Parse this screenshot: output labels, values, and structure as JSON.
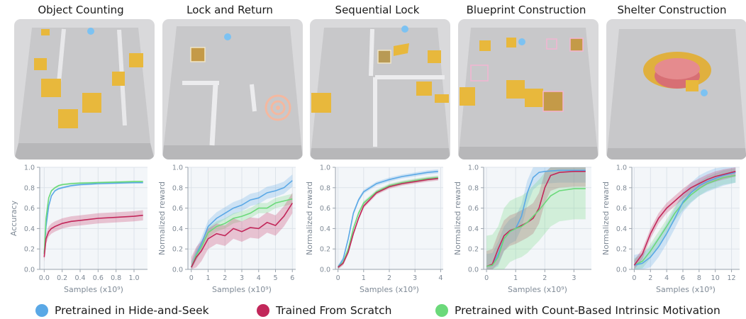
{
  "colors": {
    "blue": "#5aa8e6",
    "red": "#c2275a",
    "green": "#6bd97a"
  },
  "legend": [
    {
      "label": "Pretrained in Hide-and-Seek",
      "color": "#5aa8e6"
    },
    {
      "label": "Trained From Scratch",
      "color": "#c2275a"
    },
    {
      "label": "Pretrained with Count-Based Intrinsic Motivation",
      "color": "#6bd97a"
    }
  ],
  "panels": [
    {
      "title": "Object Counting"
    },
    {
      "title": "Lock and Return"
    },
    {
      "title": "Sequential Lock"
    },
    {
      "title": "Blueprint Construction"
    },
    {
      "title": "Shelter Construction"
    }
  ],
  "chart_data": [
    {
      "type": "line",
      "title": "Object Counting",
      "xlabel": "Samples (x10⁹)",
      "ylabel": "Accuracy",
      "xlim": [
        -0.05,
        1.15
      ],
      "ylim": [
        0.0,
        1.0
      ],
      "xticks": [
        "0.0",
        "0.2",
        "0.4",
        "0.6",
        "0.8",
        "1.0"
      ],
      "xtickvals": [
        0,
        0.2,
        0.4,
        0.6,
        0.8,
        1.0
      ],
      "yticks": [
        "0.0",
        "0.2",
        "0.4",
        "0.6",
        "0.8",
        "1.0"
      ],
      "ytickvals": [
        0,
        0.2,
        0.4,
        0.6,
        0.8,
        1.0
      ],
      "grid": true,
      "series": [
        {
          "color": "#5aa8e6",
          "band": 0.01,
          "x": [
            0,
            0.02,
            0.05,
            0.08,
            0.12,
            0.16,
            0.2,
            0.3,
            0.4,
            0.6,
            0.8,
            1.0,
            1.1
          ],
          "y": [
            0.15,
            0.42,
            0.62,
            0.72,
            0.77,
            0.79,
            0.8,
            0.82,
            0.83,
            0.84,
            0.845,
            0.85,
            0.85
          ]
        },
        {
          "color": "#6bd97a",
          "band": 0.01,
          "x": [
            0,
            0.02,
            0.05,
            0.08,
            0.12,
            0.16,
            0.2,
            0.3,
            0.4,
            0.6,
            0.8,
            1.0,
            1.1
          ],
          "y": [
            0.15,
            0.5,
            0.7,
            0.77,
            0.8,
            0.82,
            0.83,
            0.84,
            0.845,
            0.85,
            0.855,
            0.86,
            0.86
          ]
        },
        {
          "color": "#c2275a",
          "band": 0.05,
          "x": [
            0,
            0.02,
            0.05,
            0.08,
            0.12,
            0.2,
            0.3,
            0.4,
            0.6,
            0.8,
            1.0,
            1.1
          ],
          "y": [
            0.12,
            0.3,
            0.37,
            0.4,
            0.42,
            0.45,
            0.47,
            0.48,
            0.5,
            0.51,
            0.52,
            0.53
          ]
        }
      ]
    },
    {
      "type": "line",
      "title": "Lock and Return",
      "xlabel": "Samples (x10⁹)",
      "ylabel": "Normalized reward",
      "xlim": [
        -0.2,
        6.2
      ],
      "ylim": [
        0.0,
        1.0
      ],
      "xticks": [
        "0",
        "1",
        "2",
        "3",
        "4",
        "5",
        "6"
      ],
      "xtickvals": [
        0,
        1,
        2,
        3,
        4,
        5,
        6
      ],
      "yticks": [
        "0.0",
        "0.2",
        "0.4",
        "0.6",
        "0.8",
        "1.0"
      ],
      "ytickvals": [
        0,
        0.2,
        0.4,
        0.6,
        0.8,
        1.0
      ],
      "grid": true,
      "series": [
        {
          "color": "#5aa8e6",
          "band": 0.06,
          "x": [
            0,
            0.3,
            0.6,
            1,
            1.5,
            2,
            2.5,
            3,
            3.5,
            4,
            4.5,
            5,
            5.5,
            6
          ],
          "y": [
            0.02,
            0.15,
            0.25,
            0.42,
            0.5,
            0.55,
            0.6,
            0.63,
            0.68,
            0.7,
            0.75,
            0.77,
            0.8,
            0.87
          ]
        },
        {
          "color": "#6bd97a",
          "band": 0.05,
          "x": [
            0,
            0.3,
            0.6,
            1,
            1.5,
            2,
            2.5,
            3,
            3.5,
            4,
            4.5,
            5,
            5.5,
            6
          ],
          "y": [
            0.02,
            0.14,
            0.22,
            0.36,
            0.42,
            0.45,
            0.5,
            0.52,
            0.55,
            0.6,
            0.6,
            0.65,
            0.67,
            0.69
          ]
        },
        {
          "color": "#c2275a",
          "band": 0.1,
          "x": [
            0,
            0.3,
            0.6,
            1,
            1.5,
            2,
            2.5,
            3,
            3.5,
            4,
            4.5,
            5,
            5.5,
            6
          ],
          "y": [
            0.02,
            0.12,
            0.18,
            0.3,
            0.35,
            0.33,
            0.4,
            0.37,
            0.41,
            0.4,
            0.46,
            0.43,
            0.52,
            0.65
          ]
        }
      ]
    },
    {
      "type": "line",
      "title": "Sequential Lock",
      "xlabel": "Samples (x10⁹)",
      "ylabel": "Normalized reward",
      "xlim": [
        -0.1,
        4.1
      ],
      "ylim": [
        0.0,
        1.0
      ],
      "xticks": [
        "0",
        "1",
        "2",
        "3",
        "4"
      ],
      "xtickvals": [
        0,
        1,
        2,
        3,
        4
      ],
      "yticks": [
        "0.0",
        "0.2",
        "0.4",
        "0.6",
        "0.8",
        "1.0"
      ],
      "ytickvals": [
        0,
        0.2,
        0.4,
        0.6,
        0.8,
        1.0
      ],
      "grid": true,
      "series": [
        {
          "color": "#5aa8e6",
          "band": 0.02,
          "x": [
            0,
            0.2,
            0.4,
            0.6,
            0.8,
            1,
            1.5,
            2,
            2.5,
            3,
            3.5,
            3.9
          ],
          "y": [
            0.02,
            0.1,
            0.3,
            0.55,
            0.68,
            0.76,
            0.84,
            0.88,
            0.91,
            0.93,
            0.95,
            0.96
          ]
        },
        {
          "color": "#6bd97a",
          "band": 0.02,
          "x": [
            0,
            0.2,
            0.4,
            0.6,
            0.8,
            1,
            1.5,
            2,
            2.5,
            3,
            3.5,
            3.9
          ],
          "y": [
            0.02,
            0.07,
            0.2,
            0.4,
            0.55,
            0.65,
            0.76,
            0.82,
            0.85,
            0.87,
            0.89,
            0.9
          ]
        },
        {
          "color": "#c2275a",
          "band": 0.02,
          "x": [
            0,
            0.2,
            0.4,
            0.6,
            0.8,
            1,
            1.5,
            2,
            2.5,
            3,
            3.5,
            3.9
          ],
          "y": [
            0.02,
            0.06,
            0.17,
            0.35,
            0.5,
            0.62,
            0.75,
            0.81,
            0.84,
            0.86,
            0.88,
            0.89
          ]
        }
      ]
    },
    {
      "type": "line",
      "title": "Blueprint Construction",
      "xlabel": "Samples (x10⁹)",
      "ylabel": "Normalized reward",
      "xlim": [
        -0.1,
        3.6
      ],
      "ylim": [
        0.0,
        1.0
      ],
      "xticks": [
        "0",
        "1",
        "2",
        "3"
      ],
      "xtickvals": [
        0,
        1,
        2,
        3
      ],
      "yticks": [
        "0.0",
        "0.2",
        "0.4",
        "0.6",
        "0.8",
        "1.0"
      ],
      "ytickvals": [
        0,
        0.2,
        0.4,
        0.6,
        0.8,
        1.0
      ],
      "grid": true,
      "series": [
        {
          "color": "#5aa8e6",
          "band": 0.12,
          "x": [
            0,
            0.2,
            0.4,
            0.6,
            0.8,
            1,
            1.2,
            1.4,
            1.6,
            1.8,
            2,
            2.5,
            3,
            3.4
          ],
          "y": [
            0.03,
            0.04,
            0.15,
            0.3,
            0.37,
            0.4,
            0.52,
            0.75,
            0.9,
            0.95,
            0.96,
            0.97,
            0.97,
            0.97
          ]
        },
        {
          "color": "#c2275a",
          "band": 0.15,
          "x": [
            0,
            0.2,
            0.4,
            0.6,
            0.8,
            1,
            1.2,
            1.4,
            1.6,
            1.8,
            2,
            2.2,
            2.5,
            3,
            3.4
          ],
          "y": [
            0.03,
            0.05,
            0.2,
            0.33,
            0.38,
            0.4,
            0.43,
            0.46,
            0.5,
            0.6,
            0.8,
            0.92,
            0.95,
            0.96,
            0.96
          ]
        },
        {
          "color": "#6bd97a",
          "band": 0.3,
          "x": [
            0,
            0.2,
            0.4,
            0.6,
            0.8,
            1,
            1.2,
            1.4,
            1.6,
            1.8,
            2,
            2.2,
            2.5,
            3,
            3.4
          ],
          "y": [
            0.03,
            0.04,
            0.12,
            0.3,
            0.37,
            0.4,
            0.42,
            0.46,
            0.52,
            0.58,
            0.65,
            0.72,
            0.77,
            0.79,
            0.79
          ]
        }
      ]
    },
    {
      "type": "line",
      "title": "Shelter Construction",
      "xlabel": "Samples (x10⁹)",
      "ylabel": "Normalized reward",
      "xlim": [
        -0.3,
        13.0
      ],
      "ylim": [
        0.0,
        1.0
      ],
      "xticks": [
        "0",
        "2",
        "4",
        "6",
        "8",
        "10",
        "12"
      ],
      "xtickvals": [
        0,
        2,
        4,
        6,
        8,
        10,
        12
      ],
      "yticks": [
        "0.0",
        "0.2",
        "0.4",
        "0.6",
        "0.8",
        "1.0"
      ],
      "ytickvals": [
        0,
        0.2,
        0.4,
        0.6,
        0.8,
        1.0
      ],
      "grid": true,
      "series": [
        {
          "color": "#6bd97a",
          "band": 0.07,
          "x": [
            0,
            1,
            2,
            3,
            4,
            5,
            6,
            7,
            8,
            9,
            10,
            11,
            12.5
          ],
          "y": [
            0.04,
            0.08,
            0.18,
            0.3,
            0.42,
            0.55,
            0.65,
            0.73,
            0.79,
            0.84,
            0.87,
            0.9,
            0.92
          ]
        },
        {
          "color": "#5aa8e6",
          "band": 0.1,
          "x": [
            0,
            1,
            2,
            3,
            4,
            5,
            6,
            7,
            8,
            9,
            10,
            11,
            12.5
          ],
          "y": [
            0.04,
            0.06,
            0.12,
            0.22,
            0.35,
            0.5,
            0.66,
            0.75,
            0.82,
            0.86,
            0.89,
            0.92,
            0.95
          ]
        },
        {
          "color": "#c2275a",
          "band": 0.05,
          "x": [
            0,
            1,
            2,
            3,
            4,
            5,
            6,
            7,
            8,
            9,
            10,
            11,
            12.5
          ],
          "y": [
            0.04,
            0.15,
            0.35,
            0.5,
            0.6,
            0.67,
            0.74,
            0.8,
            0.84,
            0.88,
            0.91,
            0.93,
            0.96
          ]
        }
      ]
    }
  ]
}
